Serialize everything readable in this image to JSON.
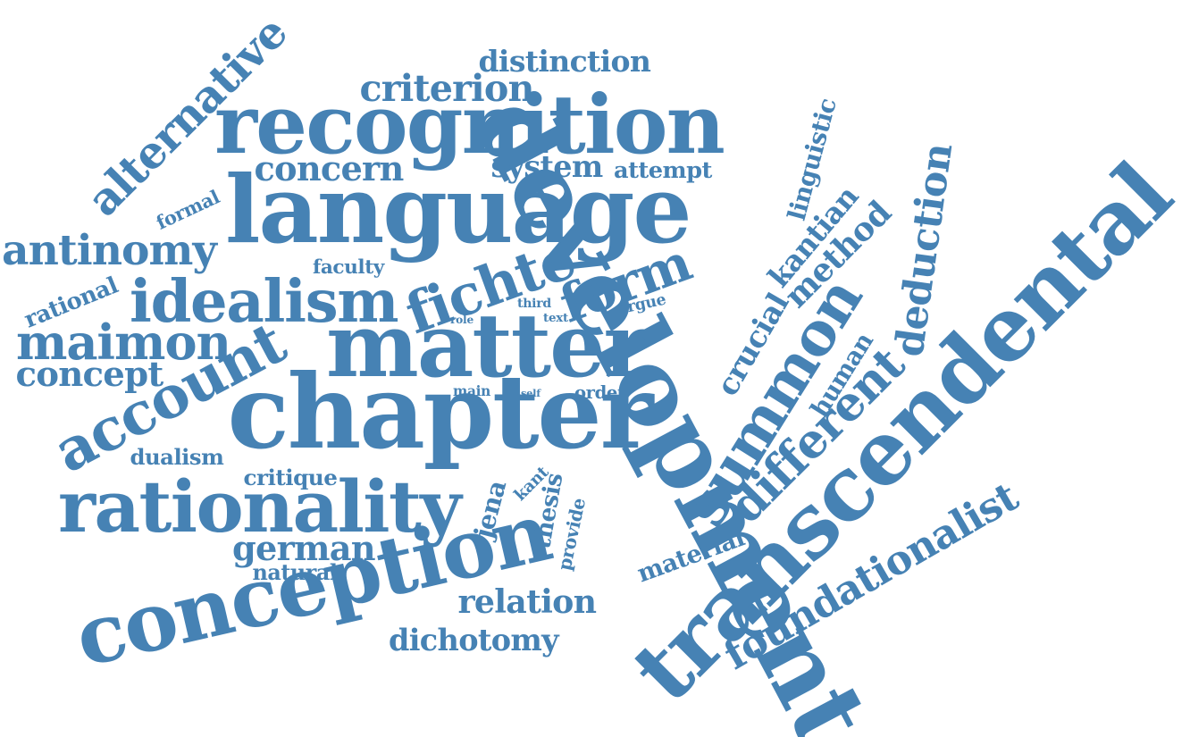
{
  "color": "#4682b4",
  "words": [
    {
      "key": "transcendental",
      "text": "transcendental"
    },
    {
      "key": "development",
      "text": "development"
    },
    {
      "key": "chapter",
      "text": "chapter"
    },
    {
      "key": "language",
      "text": "language"
    },
    {
      "key": "matter",
      "text": "matter"
    },
    {
      "key": "conception",
      "text": "conception"
    },
    {
      "key": "recognition",
      "text": "recognition"
    },
    {
      "key": "rationality",
      "text": "rationality"
    },
    {
      "key": "summon",
      "text": "summon"
    },
    {
      "key": "idealism",
      "text": "idealism"
    },
    {
      "key": "account",
      "text": "account"
    },
    {
      "key": "fichte",
      "text": "fichte"
    },
    {
      "key": "foundationalist",
      "text": "foundationalist"
    },
    {
      "key": "alternative",
      "text": "alternative"
    },
    {
      "key": "different",
      "text": "different"
    },
    {
      "key": "deduction",
      "text": "deduction"
    },
    {
      "key": "maimon",
      "text": "maimon"
    },
    {
      "key": "antinomy",
      "text": "antinomy"
    },
    {
      "key": "form",
      "text": "form"
    },
    {
      "key": "concept",
      "text": "concept"
    },
    {
      "key": "method",
      "text": "method"
    },
    {
      "key": "distinction",
      "text": "distinction"
    },
    {
      "key": "criterion",
      "text": "criterion"
    },
    {
      "key": "concern",
      "text": "concern"
    },
    {
      "key": "dichotomy",
      "text": "dichotomy"
    },
    {
      "key": "german",
      "text": "german"
    },
    {
      "key": "kantian",
      "text": "kantian"
    },
    {
      "key": "system",
      "text": "system"
    },
    {
      "key": "jena",
      "text": "jena"
    },
    {
      "key": "crucial",
      "text": "crucial"
    },
    {
      "key": "linguistic",
      "text": "linguistic"
    },
    {
      "key": "human",
      "text": "human"
    },
    {
      "key": "thesis",
      "text": "thesis"
    },
    {
      "key": "material",
      "text": "material"
    },
    {
      "key": "relation",
      "text": "relation"
    },
    {
      "key": "dualism",
      "text": "dualism"
    },
    {
      "key": "critique",
      "text": "critique"
    },
    {
      "key": "attempt",
      "text": "attempt"
    },
    {
      "key": "rational",
      "text": "rational"
    },
    {
      "key": "natural",
      "text": "natural"
    },
    {
      "key": "provide",
      "text": "provide"
    },
    {
      "key": "formal",
      "text": "formal"
    },
    {
      "key": "faculty",
      "text": "faculty"
    },
    {
      "key": "order",
      "text": "order"
    },
    {
      "key": "argue",
      "text": "argue"
    },
    {
      "key": "kant",
      "text": "kant"
    },
    {
      "key": "third",
      "text": "third"
    },
    {
      "key": "main",
      "text": "main"
    },
    {
      "key": "text",
      "text": "text"
    },
    {
      "key": "role",
      "text": "role"
    },
    {
      "key": "self",
      "text": "self"
    }
  ]
}
